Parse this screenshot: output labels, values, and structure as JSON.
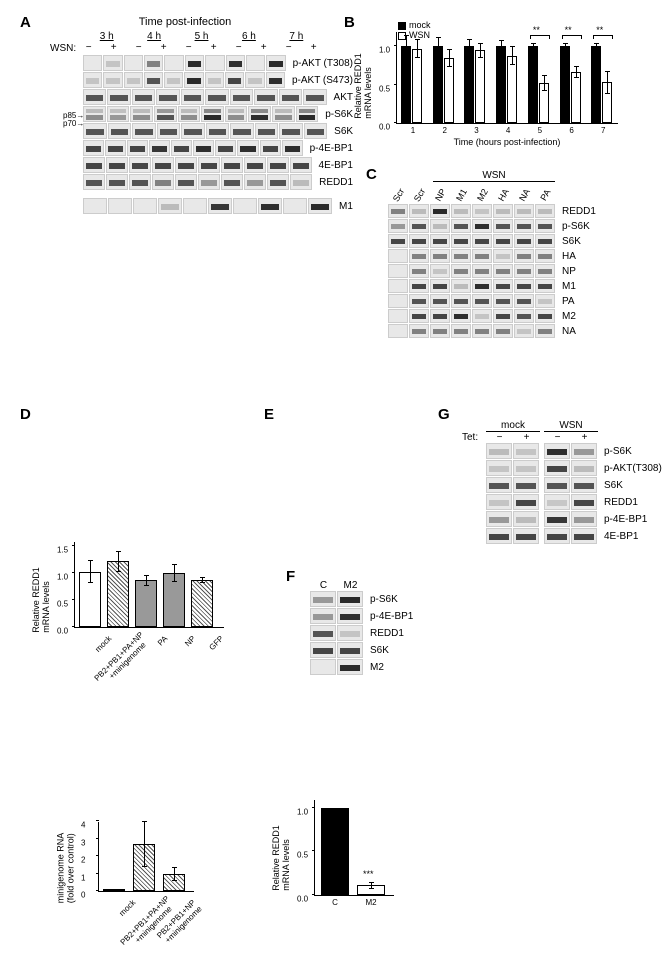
{
  "panelA": {
    "label": "A",
    "title": "Time post-infection",
    "timepoints": [
      "3 h",
      "4 h",
      "5 h",
      "6 h",
      "7 h"
    ],
    "wsn_label": "WSN:",
    "pm": [
      "−",
      "+",
      "−",
      "+",
      "−",
      "+",
      "−",
      "+",
      "−",
      "+"
    ],
    "side_labels": [
      "p85→",
      "p70→"
    ],
    "rows": [
      {
        "name": "p-AKT (T308)",
        "bands": [
          0,
          0.1,
          0,
          0.5,
          0,
          0.9,
          0,
          0.85,
          0,
          0.9
        ]
      },
      {
        "name": "p-AKT (S473)",
        "bands": [
          0.1,
          0.1,
          0.1,
          0.6,
          0.1,
          0.9,
          0.1,
          0.7,
          0.1,
          0.85
        ]
      },
      {
        "name": "AKT",
        "bands": [
          0.6,
          0.6,
          0.6,
          0.6,
          0.6,
          0.6,
          0.6,
          0.6,
          0.6,
          0.6
        ]
      },
      {
        "name": "p-S6K",
        "bands": [
          0.4,
          0.3,
          0.4,
          0.6,
          0.4,
          0.9,
          0.4,
          0.85,
          0.4,
          0.9
        ],
        "double": true
      },
      {
        "name": "S6K",
        "bands": [
          0.6,
          0.6,
          0.6,
          0.6,
          0.6,
          0.6,
          0.6,
          0.6,
          0.6,
          0.6
        ]
      },
      {
        "name": "p-4E-BP1",
        "bands": [
          0.7,
          0.7,
          0.7,
          0.8,
          0.7,
          0.85,
          0.7,
          0.85,
          0.7,
          0.85
        ]
      },
      {
        "name": "4E-BP1",
        "bands": [
          0.7,
          0.7,
          0.7,
          0.7,
          0.7,
          0.7,
          0.7,
          0.7,
          0.7,
          0.7
        ]
      },
      {
        "name": "REDD1",
        "bands": [
          0.6,
          0.6,
          0.6,
          0.5,
          0.6,
          0.3,
          0.6,
          0.3,
          0.6,
          0.2
        ]
      },
      {
        "name": "M1",
        "bands": [
          0,
          0,
          0,
          0.2,
          0,
          0.8,
          0,
          0.85,
          0,
          0.9
        ]
      }
    ]
  },
  "panelB": {
    "label": "B",
    "ylabel": "Relative REDD1\nmRNA levels",
    "xlabel": "Time (hours post-infection)",
    "legend": [
      {
        "name": "mock",
        "fill": "black"
      },
      {
        "name": "WSN",
        "fill": "white"
      }
    ],
    "ylim": [
      0,
      1.2
    ],
    "yticks": [
      0.0,
      0.5,
      1.0
    ],
    "categories": [
      "1",
      "2",
      "3",
      "4",
      "5",
      "6",
      "7"
    ],
    "mock": [
      1,
      1,
      1,
      1,
      1,
      1,
      1
    ],
    "mock_err": [
      0.15,
      0.12,
      0.1,
      0.08,
      0.05,
      0.05,
      0.05
    ],
    "wsn": [
      0.97,
      0.85,
      0.95,
      0.88,
      0.52,
      0.67,
      0.53
    ],
    "wsn_err": [
      0.12,
      0.12,
      0.1,
      0.12,
      0.1,
      0.08,
      0.15
    ],
    "sig": [
      "",
      "",
      "",
      "",
      "**",
      "**",
      "**"
    ]
  },
  "panelC": {
    "label": "C",
    "over_label": "WSN",
    "headers": [
      "Scr",
      "Scr",
      "NP",
      "M1",
      "M2",
      "HA",
      "NA",
      "PA"
    ],
    "rows": [
      {
        "name": "REDD1",
        "bands": [
          0.5,
          0.2,
          0.9,
          0.2,
          0.1,
          0.2,
          0.2,
          0.2
        ]
      },
      {
        "name": "p-S6K",
        "bands": [
          0.3,
          0.6,
          0.2,
          0.6,
          0.85,
          0.6,
          0.6,
          0.6
        ]
      },
      {
        "name": "S6K",
        "bands": [
          0.7,
          0.7,
          0.7,
          0.7,
          0.7,
          0.7,
          0.7,
          0.7
        ]
      },
      {
        "name": "HA",
        "bands": [
          0,
          0.5,
          0.5,
          0.5,
          0.5,
          0.1,
          0.5,
          0.5
        ]
      },
      {
        "name": "NP",
        "bands": [
          0,
          0.5,
          0.1,
          0.5,
          0.5,
          0.5,
          0.5,
          0.5
        ]
      },
      {
        "name": "M1",
        "bands": [
          0,
          0.7,
          0.7,
          0.2,
          0.85,
          0.7,
          0.7,
          0.7
        ]
      },
      {
        "name": "PA",
        "bands": [
          0,
          0.6,
          0.6,
          0.6,
          0.6,
          0.6,
          0.6,
          0.1
        ]
      },
      {
        "name": "M2",
        "bands": [
          0,
          0.7,
          0.7,
          0.85,
          0.1,
          0.7,
          0.6,
          0.7
        ]
      },
      {
        "name": "NA",
        "bands": [
          0,
          0.5,
          0.5,
          0.5,
          0.5,
          0.5,
          0.1,
          0.5
        ]
      }
    ]
  },
  "panelD": {
    "label": "D",
    "top": {
      "ylabel": "Relative REDD1\nmRNA levels",
      "ylim": [
        0,
        1.6
      ],
      "yticks": [
        0.0,
        0.5,
        1.0,
        1.5
      ],
      "bars": [
        {
          "name": "mock",
          "val": 1.03,
          "err": 0.22,
          "fill": "white"
        },
        {
          "name": "PB2+PB1+PA+NP\n+minigenome",
          "val": 1.22,
          "err": 0.2,
          "fill": "hatch"
        },
        {
          "name": "PA",
          "val": 0.87,
          "err": 0.1,
          "fill": "gray"
        },
        {
          "name": "NP",
          "val": 1.0,
          "err": 0.17,
          "fill": "gray"
        },
        {
          "name": "GFP",
          "val": 0.88,
          "err": 0.06,
          "fill": "hatch"
        }
      ]
    },
    "bottom": {
      "ylabel": "minigenome RNA\n(fold over control)",
      "ylim": [
        0,
        4
      ],
      "yticks": [
        0,
        1,
        2,
        3,
        4
      ],
      "bars": [
        {
          "name": "mock",
          "val": 0,
          "err": 0,
          "fill": "white"
        },
        {
          "name": "PB2+PB1+PA+NP\n+minigenome",
          "val": 2.7,
          "err": 1.3,
          "fill": "hatch"
        },
        {
          "name": "PB2+PB1+NP\n+minigenome",
          "val": 1.0,
          "err": 0.4,
          "fill": "hatch"
        }
      ]
    }
  },
  "panelE": {
    "label": "E",
    "ylabel": "Relative REDD1\nmRNA levels",
    "ylim": [
      0,
      1.1
    ],
    "yticks": [
      0.0,
      0.5,
      1.0
    ],
    "bars": [
      {
        "name": "C",
        "val": 1.0,
        "err": 0,
        "fill": "black"
      },
      {
        "name": "M2",
        "val": 0.11,
        "err": 0.04,
        "fill": "white"
      }
    ],
    "sig": "***"
  },
  "panelF": {
    "label": "F",
    "headers": [
      "C",
      "M2"
    ],
    "rows": [
      {
        "name": "p-S6K",
        "bands": [
          0.3,
          0.9
        ]
      },
      {
        "name": "p-4E-BP1",
        "bands": [
          0.3,
          0.85
        ]
      },
      {
        "name": "REDD1",
        "bands": [
          0.6,
          0.1
        ]
      },
      {
        "name": "S6K",
        "bands": [
          0.7,
          0.7
        ]
      },
      {
        "name": "M2",
        "bands": [
          0,
          0.9
        ]
      }
    ]
  },
  "panelG": {
    "label": "G",
    "group_labels": [
      "mock",
      "WSN"
    ],
    "tet_label": "Tet:",
    "headers": [
      "−",
      "+",
      "−",
      "+"
    ],
    "rows": [
      {
        "name": "p-S6K",
        "bands": [
          0.2,
          0.1,
          0.85,
          0.3
        ]
      },
      {
        "name": "p-AKT(T308)",
        "bands": [
          0.1,
          0.1,
          0.7,
          0.2
        ]
      },
      {
        "name": "S6K",
        "bands": [
          0.6,
          0.6,
          0.6,
          0.6
        ]
      },
      {
        "name": "REDD1",
        "bands": [
          0.1,
          0.7,
          0.05,
          0.7
        ]
      },
      {
        "name": "p-4E-BP1",
        "bands": [
          0.3,
          0.2,
          0.8,
          0.3
        ]
      },
      {
        "name": "4E-BP1",
        "bands": [
          0.7,
          0.7,
          0.7,
          0.7
        ]
      }
    ]
  },
  "colors": {
    "bg": "#ffffff",
    "text": "#000000",
    "blot": "#e8e8e8",
    "band": "#2a2a2a"
  }
}
